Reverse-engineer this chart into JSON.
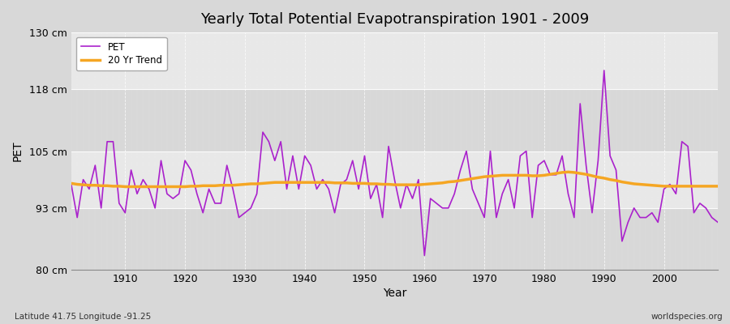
{
  "title": "Yearly Total Potential Evapotranspiration 1901 - 2009",
  "ylabel": "PET",
  "xlabel": "Year",
  "footnote_left": "Latitude 41.75 Longitude -91.25",
  "footnote_right": "worldspecies.org",
  "pet_color": "#aa22cc",
  "trend_color": "#f5a623",
  "background_color": "#d8d8d8",
  "plot_bg_color": "#e8e8e8",
  "band_light": "#e8e8e8",
  "band_dark": "#d8d8d8",
  "ylim": [
    80,
    130
  ],
  "yticks": [
    80,
    93,
    105,
    118,
    130
  ],
  "ytick_labels": [
    "80 cm",
    "93 cm",
    "105 cm",
    "118 cm",
    "130 cm"
  ],
  "xlim": [
    1901,
    2009
  ],
  "years": [
    1901,
    1902,
    1903,
    1904,
    1905,
    1906,
    1907,
    1908,
    1909,
    1910,
    1911,
    1912,
    1913,
    1914,
    1915,
    1916,
    1917,
    1918,
    1919,
    1920,
    1921,
    1922,
    1923,
    1924,
    1925,
    1926,
    1927,
    1928,
    1929,
    1930,
    1931,
    1932,
    1933,
    1934,
    1935,
    1936,
    1937,
    1938,
    1939,
    1940,
    1941,
    1942,
    1943,
    1944,
    1945,
    1946,
    1947,
    1948,
    1949,
    1950,
    1951,
    1952,
    1953,
    1954,
    1955,
    1956,
    1957,
    1958,
    1959,
    1960,
    1961,
    1962,
    1963,
    1964,
    1965,
    1966,
    1967,
    1968,
    1969,
    1970,
    1971,
    1972,
    1973,
    1974,
    1975,
    1976,
    1977,
    1978,
    1979,
    1980,
    1981,
    1982,
    1983,
    1984,
    1985,
    1986,
    1987,
    1988,
    1989,
    1990,
    1991,
    1992,
    1993,
    1994,
    1995,
    1996,
    1997,
    1998,
    1999,
    2000,
    2001,
    2002,
    2003,
    2004,
    2005,
    2006,
    2007,
    2008,
    2009
  ],
  "pet_values": [
    98,
    91,
    99,
    97,
    102,
    93,
    107,
    107,
    94,
    92,
    101,
    96,
    99,
    97,
    93,
    103,
    96,
    95,
    96,
    103,
    101,
    96,
    92,
    97,
    94,
    94,
    102,
    97,
    91,
    92,
    93,
    96,
    109,
    107,
    103,
    107,
    97,
    104,
    97,
    104,
    102,
    97,
    99,
    97,
    92,
    98,
    99,
    103,
    97,
    104,
    95,
    98,
    91,
    106,
    99,
    93,
    98,
    95,
    99,
    83,
    95,
    94,
    93,
    93,
    96,
    101,
    105,
    97,
    94,
    91,
    105,
    91,
    96,
    99,
    93,
    104,
    105,
    91,
    102,
    103,
    100,
    100,
    104,
    96,
    91,
    115,
    102,
    92,
    103,
    122,
    104,
    101,
    86,
    90,
    93,
    91,
    91,
    92,
    90,
    97,
    98,
    96,
    107,
    106,
    92,
    94,
    93,
    91,
    90
  ],
  "trend_values": [
    98.2,
    98.0,
    97.9,
    97.8,
    97.8,
    97.7,
    97.7,
    97.6,
    97.6,
    97.5,
    97.5,
    97.5,
    97.5,
    97.5,
    97.5,
    97.5,
    97.5,
    97.5,
    97.5,
    97.5,
    97.6,
    97.6,
    97.7,
    97.7,
    97.7,
    97.8,
    97.8,
    97.8,
    97.9,
    98.0,
    98.1,
    98.1,
    98.2,
    98.3,
    98.4,
    98.4,
    98.4,
    98.4,
    98.4,
    98.4,
    98.4,
    98.4,
    98.4,
    98.4,
    98.3,
    98.3,
    98.3,
    98.2,
    98.2,
    98.2,
    98.1,
    98.1,
    98.0,
    98.0,
    97.9,
    97.9,
    97.9,
    97.9,
    97.9,
    98.0,
    98.1,
    98.2,
    98.3,
    98.5,
    98.6,
    98.8,
    99.0,
    99.2,
    99.4,
    99.6,
    99.7,
    99.8,
    99.9,
    99.9,
    99.9,
    99.9,
    99.9,
    99.8,
    99.8,
    99.9,
    100.1,
    100.3,
    100.5,
    100.6,
    100.5,
    100.3,
    100.1,
    99.8,
    99.5,
    99.3,
    99.0,
    98.8,
    98.5,
    98.3,
    98.1,
    98.0,
    97.9,
    97.8,
    97.7,
    97.6,
    97.6,
    97.6,
    97.6,
    97.6,
    97.6,
    97.6,
    97.6,
    97.6,
    97.6
  ]
}
